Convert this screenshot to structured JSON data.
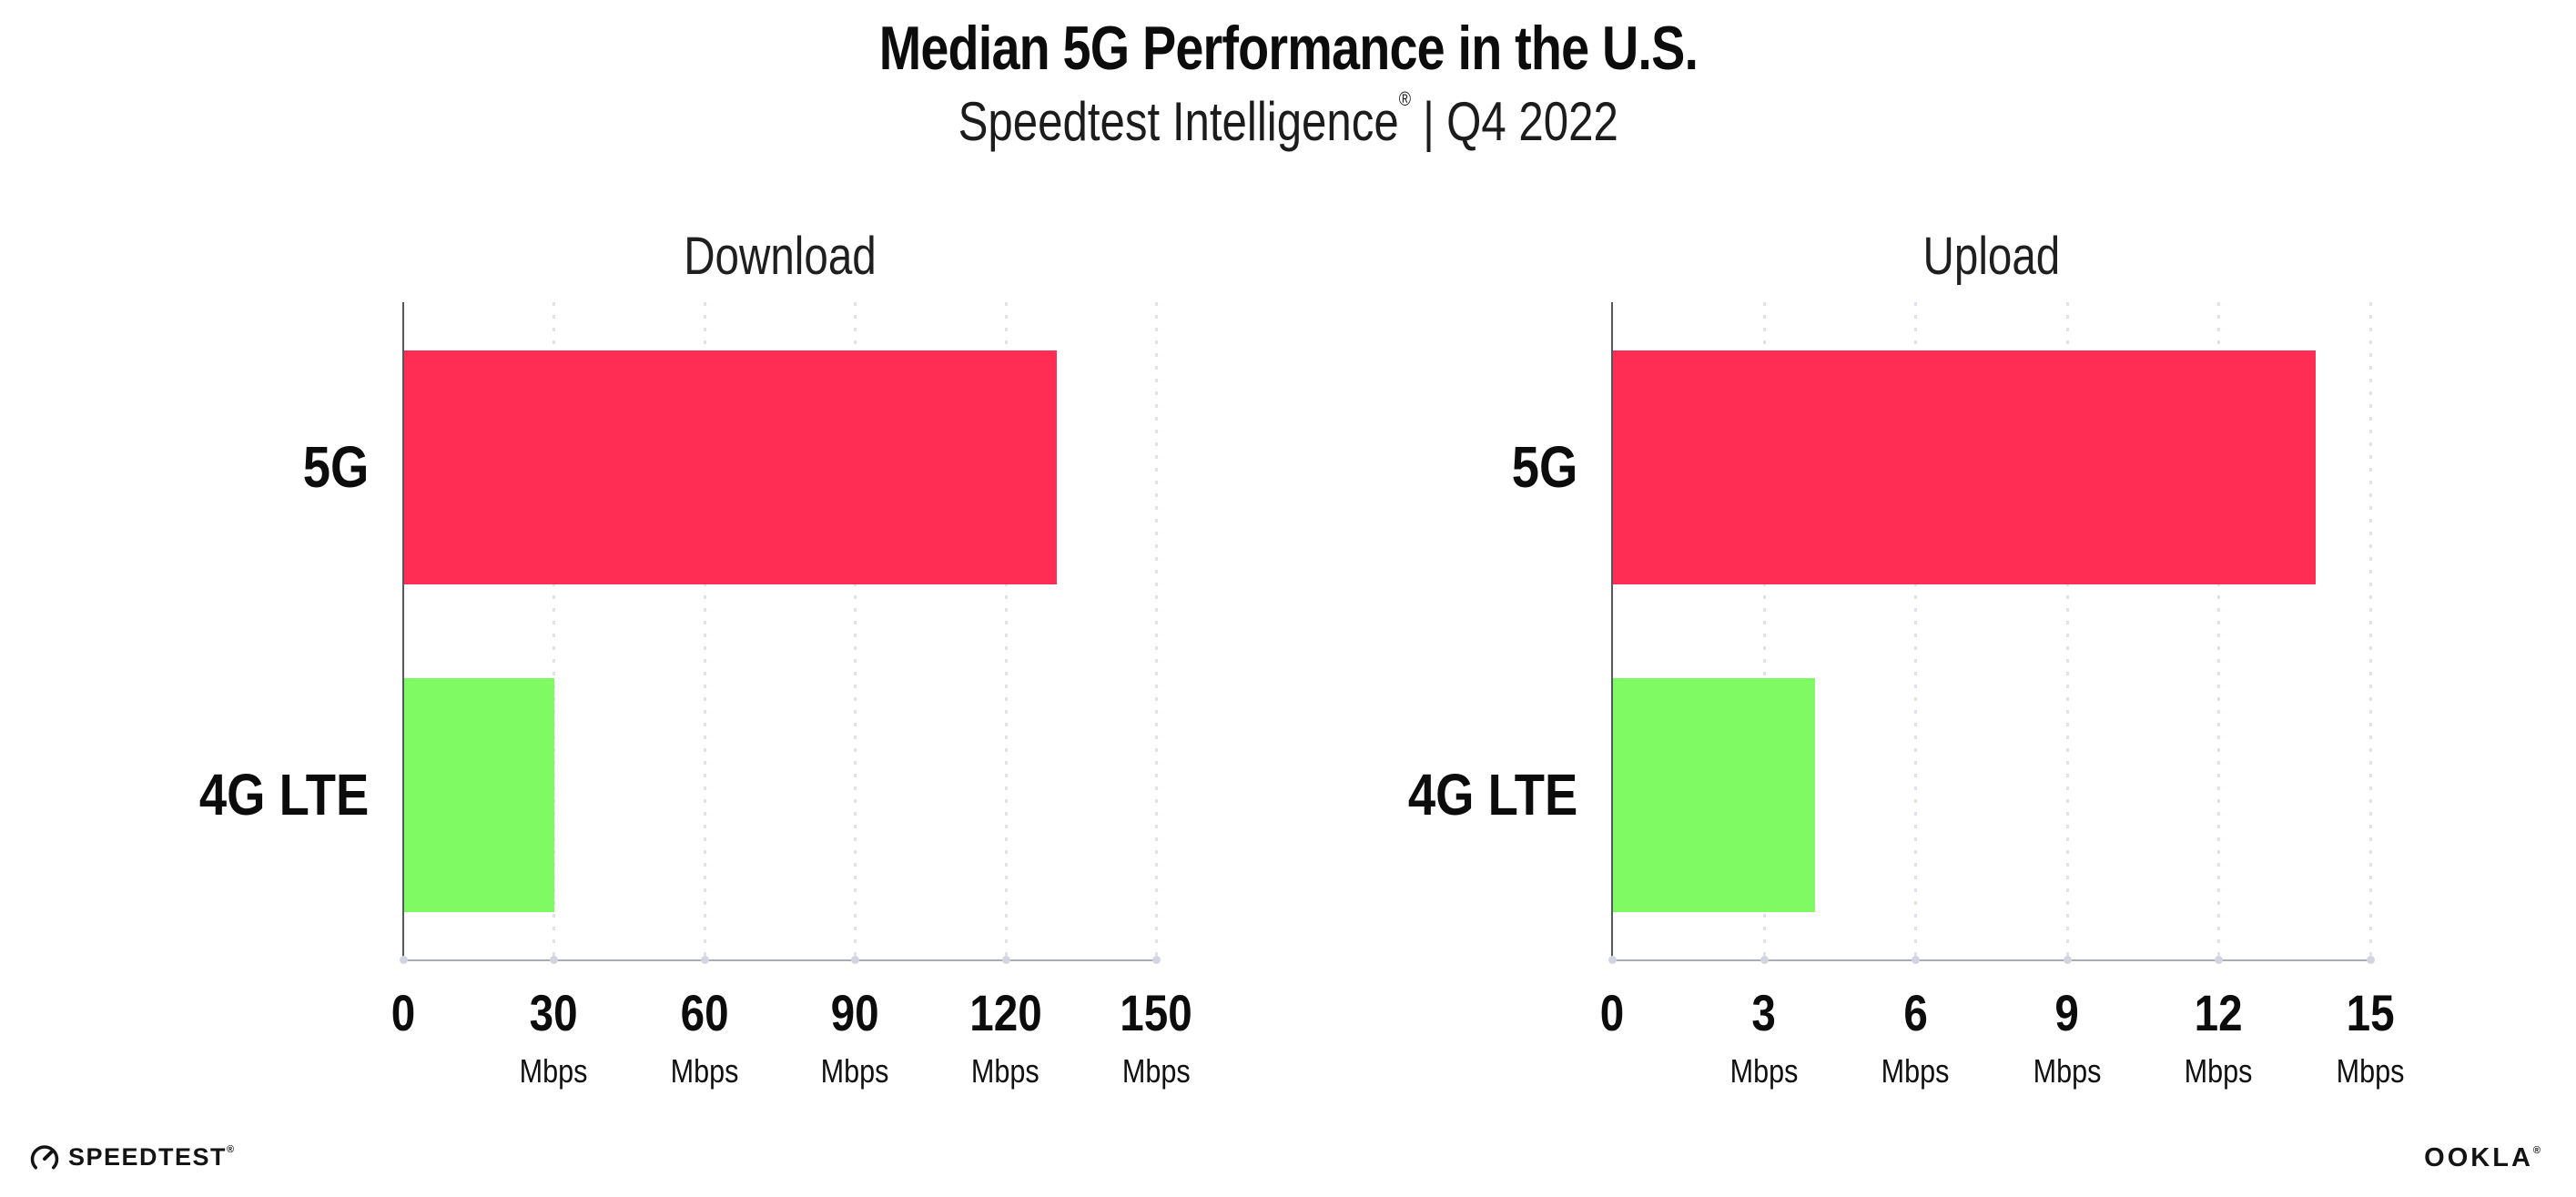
{
  "header": {
    "title": "Median 5G Performance in the U.S.",
    "subtitle_brand": "Speedtest Intelligence",
    "subtitle_reg": "®",
    "subtitle_divider": "|",
    "subtitle_period": "Q4 2022"
  },
  "chart_data": [
    {
      "type": "bar",
      "orientation": "horizontal",
      "title": "Download",
      "categories": [
        "5G",
        "4G LTE"
      ],
      "values": [
        130,
        30
      ],
      "unit": "Mbps",
      "xlim": [
        0,
        150
      ],
      "xticks": [
        0,
        30,
        60,
        90,
        120,
        150
      ],
      "bar_colors": [
        "#ff2d53",
        "#80fa63"
      ],
      "grid": "vertical-dotted",
      "legend": "none"
    },
    {
      "type": "bar",
      "orientation": "horizontal",
      "title": "Upload",
      "categories": [
        "5G",
        "4G LTE"
      ],
      "values": [
        13.9,
        4
      ],
      "unit": "Mbps",
      "xlim": [
        0,
        15
      ],
      "xticks": [
        0,
        3,
        6,
        9,
        12,
        15
      ],
      "bar_colors": [
        "#ff2d53",
        "#80fa63"
      ],
      "grid": "vertical-dotted",
      "legend": "none"
    }
  ],
  "colors": {
    "bar_5g": "#ff2d53",
    "bar_4g_lte": "#80fa63",
    "axis_horizontal": "#a9abb5",
    "axis_vertical": "#55575f",
    "grid_dots": "#e0e1ed",
    "text": "#111111"
  },
  "footer": {
    "speedtest_text": "SPEEDTEST",
    "speedtest_reg": "®",
    "speedtest_icon": "gauge-icon",
    "ookla_text": "OOKLA",
    "ookla_reg": "®"
  }
}
